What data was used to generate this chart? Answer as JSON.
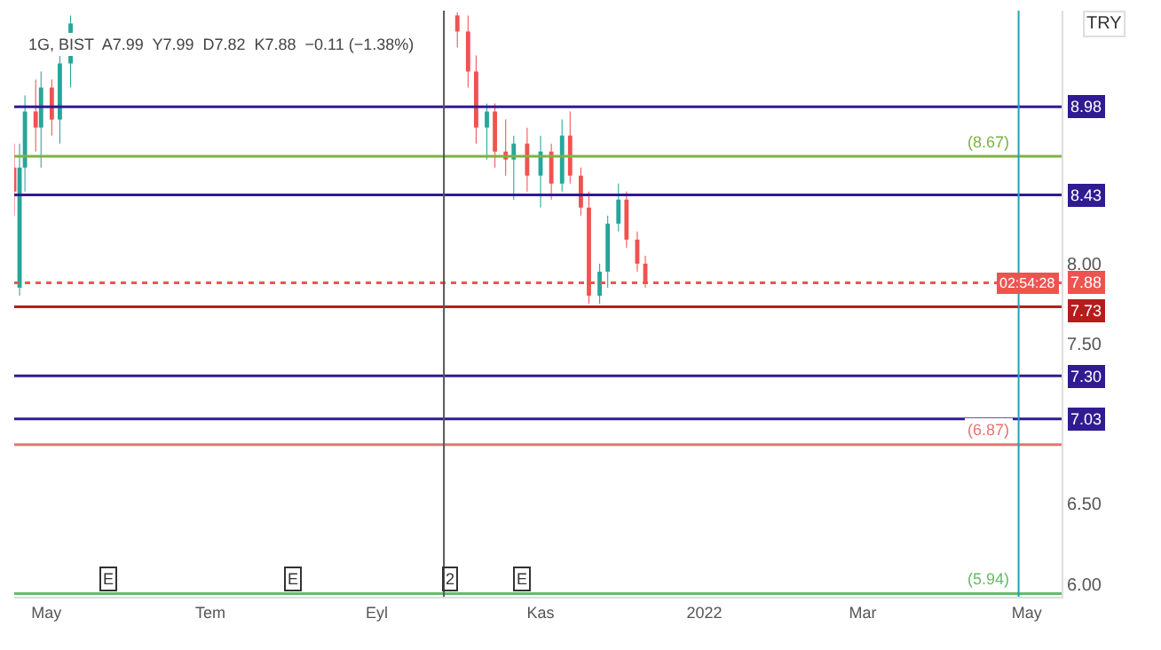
{
  "chart_data": {
    "type": "candlestick",
    "subtitle": "1G, BIST  A7.99  Y7.99  D7.82  K7.88  −0.11 (−1.38%)",
    "ylabel": "TRY",
    "x": [
      "2021-04-19",
      "2021-04-21",
      "2021-04-23",
      "2021-04-27",
      "2021-04-29",
      "2021-05-03",
      "2021-05-06",
      "2021-05-10",
      "2021-10-01",
      "2021-10-05",
      "2021-10-08",
      "2021-10-12",
      "2021-10-15",
      "2021-10-19",
      "2021-10-22",
      "2021-10-27",
      "2021-11-01",
      "2021-11-05",
      "2021-11-09",
      "2021-11-12",
      "2021-11-16",
      "2021-11-19",
      "2021-11-23",
      "2021-11-26",
      "2021-11-30",
      "2021-12-03",
      "2021-12-07",
      "2021-12-10"
    ],
    "ohlc": [
      [
        8.6,
        8.75,
        8.3,
        8.45
      ],
      [
        7.85,
        8.75,
        7.8,
        8.6
      ],
      [
        8.6,
        9.05,
        8.45,
        8.95
      ],
      [
        8.95,
        9.15,
        8.7,
        8.85
      ],
      [
        8.85,
        9.2,
        8.6,
        9.1
      ],
      [
        9.1,
        9.15,
        8.8,
        8.9
      ],
      [
        8.9,
        9.3,
        8.75,
        9.25
      ],
      [
        9.25,
        9.55,
        9.1,
        9.5
      ],
      [
        9.55,
        9.57,
        9.35,
        9.45
      ],
      [
        9.45,
        9.55,
        9.1,
        9.2
      ],
      [
        9.2,
        9.3,
        8.75,
        8.85
      ],
      [
        8.85,
        9.0,
        8.65,
        8.95
      ],
      [
        8.95,
        9.0,
        8.6,
        8.7
      ],
      [
        8.7,
        8.9,
        8.55,
        8.65
      ],
      [
        8.65,
        8.8,
        8.4,
        8.75
      ],
      [
        8.75,
        8.85,
        8.45,
        8.55
      ],
      [
        8.55,
        8.8,
        8.35,
        8.7
      ],
      [
        8.7,
        8.75,
        8.4,
        8.5
      ],
      [
        8.5,
        8.9,
        8.45,
        8.8
      ],
      [
        8.8,
        8.95,
        8.5,
        8.55
      ],
      [
        8.55,
        8.6,
        8.3,
        8.35
      ],
      [
        8.35,
        8.45,
        7.75,
        7.8
      ],
      [
        7.8,
        8.0,
        7.75,
        7.95
      ],
      [
        7.95,
        8.3,
        7.85,
        8.25
      ],
      [
        8.25,
        8.5,
        8.2,
        8.4
      ],
      [
        8.4,
        8.45,
        8.1,
        8.15
      ],
      [
        8.15,
        8.2,
        7.95,
        8.0
      ],
      [
        8.0,
        8.05,
        7.85,
        7.88
      ]
    ],
    "colors": [
      "#ef5350",
      "#26a69a",
      "#26a69a",
      "#ef5350",
      "#26a69a",
      "#ef5350",
      "#26a69a",
      "#26a69a",
      "#ef5350",
      "#ef5350",
      "#ef5350",
      "#26a69a",
      "#ef5350",
      "#ef5350",
      "#26a69a",
      "#ef5350",
      "#26a69a",
      "#ef5350",
      "#26a69a",
      "#ef5350",
      "#ef5350",
      "#ef5350",
      "#26a69a",
      "#26a69a",
      "#26a69a",
      "#ef5350",
      "#ef5350",
      "#ef5350"
    ],
    "xlim": [
      "2021-04-19",
      "2022-05-14"
    ],
    "xticks": [
      {
        "value": "2021-05-01",
        "label": "May"
      },
      {
        "value": "2021-07-01",
        "label": "Tem"
      },
      {
        "value": "2021-09-01",
        "label": "Eyl"
      },
      {
        "value": "2021-11-01",
        "label": "Kas"
      },
      {
        "value": "2022-01-01",
        "label": "2022"
      },
      {
        "value": "2022-03-01",
        "label": "Mar"
      },
      {
        "value": "2022-05-01",
        "label": "May"
      }
    ],
    "ylim": [
      5.92,
      9.58
    ],
    "yticks": [
      {
        "value": 6,
        "label": "6.00"
      },
      {
        "value": 6.5,
        "label": "6.50"
      },
      {
        "value": 7.5,
        "label": "7.50"
      },
      {
        "value": 8,
        "label": "8.00"
      }
    ],
    "ref_lines": [
      {
        "axis": "y",
        "value": 8.98,
        "label": "8.98",
        "color": "#311b92"
      },
      {
        "axis": "y",
        "value": 8.67,
        "label": "(8.67)",
        "color": "#7cb342"
      },
      {
        "axis": "y",
        "value": 8.43,
        "label": "8.43",
        "color": "#311b92"
      },
      {
        "axis": "y",
        "value": 7.88,
        "label": "7.88",
        "color": "#ef5350",
        "line_style": "dotted"
      },
      {
        "axis": "y",
        "value": 7.73,
        "label": "7.73",
        "color": "#b71c1c"
      },
      {
        "axis": "y",
        "value": 7.3,
        "label": "7.30",
        "color": "#311b92"
      },
      {
        "axis": "y",
        "value": 7.03,
        "label": "7.03",
        "color": "#311b92"
      },
      {
        "axis": "y",
        "value": 6.87,
        "label": "(6.87)",
        "color": "#e57373"
      },
      {
        "axis": "y",
        "value": 5.94,
        "label": "(5.94)",
        "color": "#66bb6a"
      },
      {
        "axis": "x",
        "value": "2021-09-26",
        "label": null,
        "color": "#555555"
      },
      {
        "axis": "x",
        "value": "2022-04-28",
        "label": null,
        "color": "#26a0b8"
      }
    ],
    "annotations": [
      "02:54:28",
      {
        "text": "E",
        "x": "2021-05-24"
      },
      {
        "text": "E",
        "x": "2021-08-01"
      },
      {
        "text": "2",
        "x": "2021-09-28"
      },
      {
        "text": "E",
        "x": "2021-10-25"
      }
    ],
    "grid": false
  }
}
